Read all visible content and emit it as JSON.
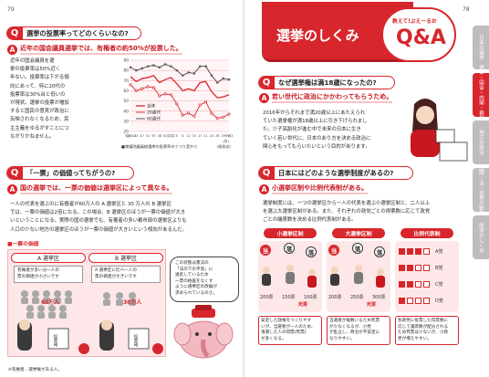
{
  "page": {
    "left_number": "79",
    "right_number": "78"
  },
  "left": {
    "q1": {
      "mark": "Q",
      "text": "選挙の投票率ってどのくらいなの?"
    },
    "a1": {
      "mark": "A",
      "text": "近年の国会議員選挙では、有権者の約50%が投票した。"
    },
    "para1": [
      "近年の国会議員を選",
      "挙の投票率は50%近く",
      "年ない。投票率は下がる傾",
      "向にあって、特に20代の",
      "投票率は30%台と低いの",
      "が現状。選挙の投票が増加",
      "すると国民の意見が政治に",
      "反映されなくなるため、民",
      "主主義をゆるがすことにつ",
      "ながりかねません。"
    ],
    "chart_legend": [
      "全体",
      "20歳代",
      "60歳代"
    ],
    "chart_axis_label": "(年)",
    "chart_caption": "■衆議院議員総選挙の投票率のうつり変わり",
    "chart_source": "(総務省)",
    "chart_xticks": [
      "昭和42",
      "44",
      "47",
      "51",
      "55",
      "58",
      "61",
      "平成2",
      "5",
      "8",
      "12",
      "15",
      "17",
      "21",
      "24",
      "26",
      "29",
      "令和3"
    ],
    "chart_yticks": [
      "90",
      "80",
      "70",
      "60",
      "50",
      "40",
      "30",
      "20"
    ],
    "q2": {
      "mark": "Q",
      "text": "「一票」の価値ってちがうの?"
    },
    "a2": {
      "mark": "A",
      "text": "国の選挙では、一票の価値は選挙区によって異なる。"
    },
    "para2": [
      "一人の代表を選ぶのに有権者が60万人の A 選挙区と 30 万人の B 選挙区",
      "では、一票の価値は2倍になる。この場合、B 選挙区のほうが一票の価値が大き",
      "いということになる。実際の国の選挙でも、有権者の多い都市部の選挙区よりも",
      "人口の少ない地方の選挙区のほうが一票の価値が大きいという傾向があるんだ。"
    ],
    "fig_title": "■一票の価値",
    "fig_a_title": "A 選挙区",
    "fig_b_title": "B 選挙区",
    "fig_a_note": [
      "有権者が多い分一人の",
      "票の価値が小さいです"
    ],
    "fig_b_note": [
      "A 選挙区に比べ一人の",
      "票の価値が大きいです"
    ],
    "fig_a_num": "60万人",
    "fig_b_num": "30万人",
    "speech": [
      "この状態は憲法の",
      "「法の下の平等」に",
      "違反しているため",
      "一票の格差をなくす",
      "ように選挙区の改編が",
      "求められているのさ。"
    ],
    "ballot_label": "投票箱",
    "footnote": "※有権者…選挙権がある人。"
  },
  "right": {
    "banner_title": "選挙のしくみ",
    "logo_small": "教えて!ぶえーるお",
    "logo_big": "Q&A",
    "q1": {
      "mark": "Q",
      "text": "なぜ選挙権は満18歳になったの?"
    },
    "a1": {
      "mark": "A",
      "text": "若い世代に政治にかかわってもらうため。"
    },
    "para1": [
      "2016年からそれまで満20歳以上にあたえられ",
      "ていた選挙権が満18歳以上に引き下げられまし",
      "た。少子高齢化が進む中で未来の日本に生き",
      "ていく若い世代に、日本のあり方を決める政治に",
      "関心をもってもらいたいという目的があります。"
    ],
    "q2": {
      "mark": "Q",
      "text": "日本にはどのような選挙制度があるの?"
    },
    "a2": {
      "mark": "A",
      "text": "小選挙区制や比例代表制がある。"
    },
    "para2": [
      "選挙制度には、一つの選挙区から一人の代表を選ぶ小選挙区制と、二人以上",
      "を選ぶ大選挙区制がある。また、それぞれの政党ごとの得票数に応じて政党",
      "ごとの議席数を決める比例代表制がある。"
    ],
    "systems": [
      {
        "title": "小選挙区制",
        "win": "当",
        "lose": "落",
        "votes": [
          "200票",
          "150票",
          "100票"
        ],
        "side_label": "死票",
        "desc": [
          "安定した政権をつくりやす",
          "いが、当選者が一人のため、",
          "落選した人の得票(死票)",
          "が多くなる。"
        ]
      },
      {
        "title": "大選挙区制",
        "win": "当",
        "lose": "落",
        "votes": [
          "200票",
          "250票",
          "300票"
        ],
        "side_label": "死票",
        "desc": [
          "当選者が複数いるため死票",
          "が少なくなるが、小党",
          "が乱立し、政治が不安定に",
          "なりやすい。"
        ]
      },
      {
        "title": "比例代表制",
        "win": "当",
        "lose": "落",
        "parties": [
          "A党",
          "B党",
          "C党",
          "D党"
        ],
        "votes": [
          "120",
          "100",
          "80",
          "50"
        ],
        "desc": [
          "各政党に投票した得票数に",
          "応じて議席数が配分される",
          "ため死票は少ないが、小政",
          "党が増えやすい。"
        ]
      }
    ],
    "tabs": [
      "日本の選挙",
      "選挙・国会・内閣・裁判所",
      "地方の政治",
      "国際・法・世界の動き",
      "経済のしくみ"
    ]
  },
  "colors": {
    "accent": "#d8262d",
    "pink_light": "#fde7e8",
    "pink_mid": "#f6c3c6",
    "grid_pink": "#f4b6ba",
    "tab_gray": "#bdbdbd",
    "tab_active": "#8a8a8a"
  },
  "chart_data": {
    "type": "line",
    "title": "衆議院議員総選挙の投票率のうつり変わり",
    "xlabel": "(年)",
    "ylabel": "",
    "ylim": [
      20,
      90
    ],
    "categories": [
      "昭和42",
      "44",
      "47",
      "51",
      "55",
      "58",
      "61",
      "平成2",
      "5",
      "8",
      "12",
      "15",
      "17",
      "21",
      "24",
      "26",
      "29",
      "令和3"
    ],
    "series": [
      {
        "name": "全体",
        "values": [
          74,
          69,
          72,
          73,
          75,
          68,
          71,
          73,
          67,
          60,
          62,
          60,
          68,
          69,
          59,
          53,
          54,
          56
        ]
      },
      {
        "name": "20歳代",
        "values": [
          66,
          60,
          62,
          64,
          63,
          55,
          57,
          56,
          47,
          36,
          38,
          35,
          46,
          49,
          38,
          33,
          34,
          37
        ]
      },
      {
        "name": "60歳代",
        "values": [
          83,
          80,
          82,
          84,
          85,
          83,
          86,
          84,
          80,
          75,
          78,
          77,
          84,
          84,
          75,
          68,
          72,
          71
        ]
      }
    ]
  }
}
